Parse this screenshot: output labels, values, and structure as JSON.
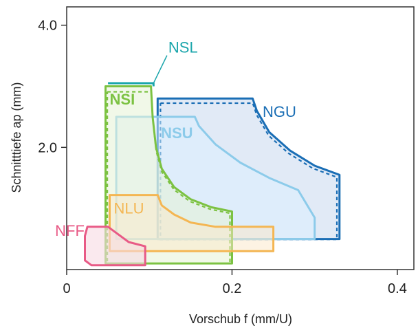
{
  "chart_data": {
    "type": "area",
    "title": "",
    "xlabel": "Vorschub f (mm/U)",
    "ylabel": "Schnitttiefe ap (mm)",
    "xlim": [
      0,
      0.42
    ],
    "ylim": [
      0,
      4.3
    ],
    "x_ticks": [
      {
        "value": 0,
        "label": "0"
      },
      {
        "value": 0.2,
        "label": "0.2"
      },
      {
        "value": 0.4,
        "label": "0.4"
      }
    ],
    "y_ticks": [
      {
        "value": 2.0,
        "label": "2.0"
      },
      {
        "value": 4.0,
        "label": "4.0"
      }
    ],
    "grid": false,
    "series": [
      {
        "name": "NGU",
        "color": "#1a6eb5",
        "fill": "#c9d8ef",
        "fill_opacity": 0.55,
        "dashed_inner": true,
        "label_bold": false,
        "outline": [
          [
            0.11,
            2.8
          ],
          [
            0.225,
            2.8
          ],
          [
            0.23,
            2.6
          ],
          [
            0.245,
            2.25
          ],
          [
            0.27,
            1.95
          ],
          [
            0.3,
            1.7
          ],
          [
            0.33,
            1.55
          ],
          [
            0.33,
            0.5
          ],
          [
            0.11,
            0.5
          ],
          [
            0.11,
            2.8
          ]
        ]
      },
      {
        "name": "NSU",
        "color": "#8ccbea",
        "fill": "#dcefff",
        "fill_opacity": 0.5,
        "dashed_inner": false,
        "label_bold": true,
        "outline": [
          [
            0.06,
            2.5
          ],
          [
            0.155,
            2.5
          ],
          [
            0.16,
            2.35
          ],
          [
            0.18,
            2.05
          ],
          [
            0.21,
            1.75
          ],
          [
            0.245,
            1.5
          ],
          [
            0.28,
            1.3
          ],
          [
            0.3,
            0.85
          ],
          [
            0.3,
            0.5
          ],
          [
            0.06,
            0.5
          ],
          [
            0.06,
            2.5
          ]
        ]
      },
      {
        "name": "NSI",
        "color": "#7cc242",
        "fill": "#e6f2d6",
        "fill_opacity": 0.55,
        "dashed_inner": true,
        "label_bold": true,
        "outline": [
          [
            0.047,
            3.0
          ],
          [
            0.102,
            3.0
          ],
          [
            0.104,
            2.5
          ],
          [
            0.108,
            2.0
          ],
          [
            0.115,
            1.65
          ],
          [
            0.13,
            1.35
          ],
          [
            0.15,
            1.15
          ],
          [
            0.175,
            1.02
          ],
          [
            0.2,
            0.95
          ],
          [
            0.2,
            0.1
          ],
          [
            0.047,
            0.1
          ],
          [
            0.047,
            3.0
          ]
        ]
      },
      {
        "name": "NSL",
        "color": "#1aa5ab",
        "fill": "none",
        "fill_opacity": 0,
        "dashed_inner": false,
        "label_bold": false,
        "outline": [
          [
            0.05,
            3.05
          ],
          [
            0.105,
            3.05
          ],
          [
            0.105,
            3.0
          ]
        ]
      },
      {
        "name": "NLU",
        "color": "#f4b653",
        "fill": "#fbe8c8",
        "fill_opacity": 0.5,
        "dashed_inner": false,
        "label_bold": false,
        "outline": [
          [
            0.052,
            1.22
          ],
          [
            0.11,
            1.22
          ],
          [
            0.115,
            1.05
          ],
          [
            0.13,
            0.9
          ],
          [
            0.15,
            0.77
          ],
          [
            0.18,
            0.7
          ],
          [
            0.25,
            0.7
          ],
          [
            0.25,
            0.3
          ],
          [
            0.052,
            0.3
          ],
          [
            0.052,
            1.22
          ]
        ]
      },
      {
        "name": "NFF",
        "color": "#e85a86",
        "fill": "#f7dbe2",
        "fill_opacity": 0.6,
        "dashed_inner": false,
        "label_bold": false,
        "outline": [
          [
            0.025,
            0.7
          ],
          [
            0.05,
            0.7
          ],
          [
            0.06,
            0.6
          ],
          [
            0.075,
            0.45
          ],
          [
            0.095,
            0.38
          ],
          [
            0.095,
            0.07
          ],
          [
            0.03,
            0.07
          ],
          [
            0.022,
            0.15
          ],
          [
            0.022,
            0.55
          ],
          [
            0.025,
            0.7
          ]
        ]
      }
    ],
    "annotations": [
      {
        "series": "NGU",
        "text": "NGU",
        "x": 0.237,
        "y": 2.5
      },
      {
        "series": "NSU",
        "text": "NSU",
        "x": 0.114,
        "y": 2.15
      },
      {
        "series": "NSI",
        "text": "NSI",
        "x": 0.052,
        "y": 2.7
      },
      {
        "series": "NSL",
        "text": "NSL",
        "x": 0.123,
        "y": 3.55
      },
      {
        "series": "NLU",
        "text": "NLU",
        "x": 0.057,
        "y": 0.92
      },
      {
        "series": "NFF",
        "text": "NFF",
        "x": -0.014,
        "y": 0.55
      }
    ]
  }
}
